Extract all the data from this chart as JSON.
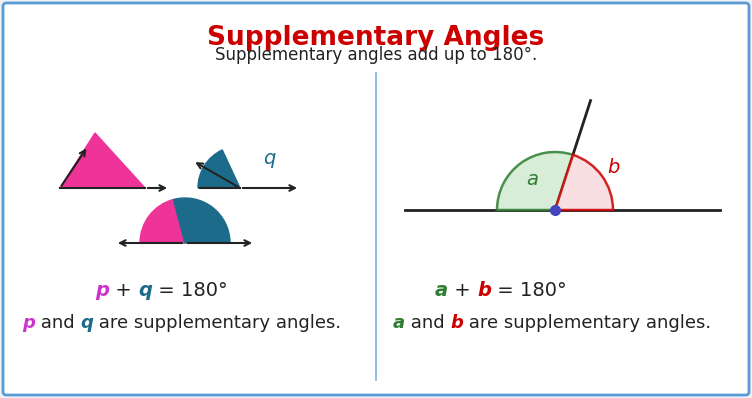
{
  "title": "Supplementary Angles",
  "title_color": "#cc0000",
  "subtitle": "Supplementary angles add up to 180°.",
  "subtitle_color": "#222222",
  "bg_color": "#eef2f7",
  "panel_color": "#ffffff",
  "border_color": "#5b9bd5",
  "pink_color": "#ee3399",
  "teal_color": "#1d6b8a",
  "green_color": "#2e7d32",
  "red_color": "#cc0000",
  "blue_dot_color": "#4444bb",
  "divider_color": "#7ab3d9",
  "left_eq_parts": [
    "p",
    " + ",
    "q",
    " = 180°"
  ],
  "left_eq_colors": [
    "#cc33cc",
    "#222222",
    "#1d6b8a",
    "#222222"
  ],
  "left_eq_italic": [
    true,
    false,
    true,
    false
  ],
  "left_note_parts": [
    "p",
    " and ",
    "q",
    " are supplementary angles."
  ],
  "left_note_colors": [
    "#cc33cc",
    "#222222",
    "#1d6b8a",
    "#222222"
  ],
  "left_note_italic": [
    true,
    false,
    true,
    false
  ],
  "right_eq_parts": [
    "a",
    " + ",
    "b",
    " = 180°"
  ],
  "right_eq_colors": [
    "#2e7d32",
    "#222222",
    "#cc0000",
    "#222222"
  ],
  "right_eq_italic": [
    true,
    false,
    true,
    false
  ],
  "right_note_parts": [
    "a",
    " and ",
    "b",
    " are supplementary angles."
  ],
  "right_note_colors": [
    "#2e7d32",
    "#222222",
    "#cc0000",
    "#222222"
  ],
  "right_note_italic": [
    true,
    false,
    true,
    false
  ]
}
